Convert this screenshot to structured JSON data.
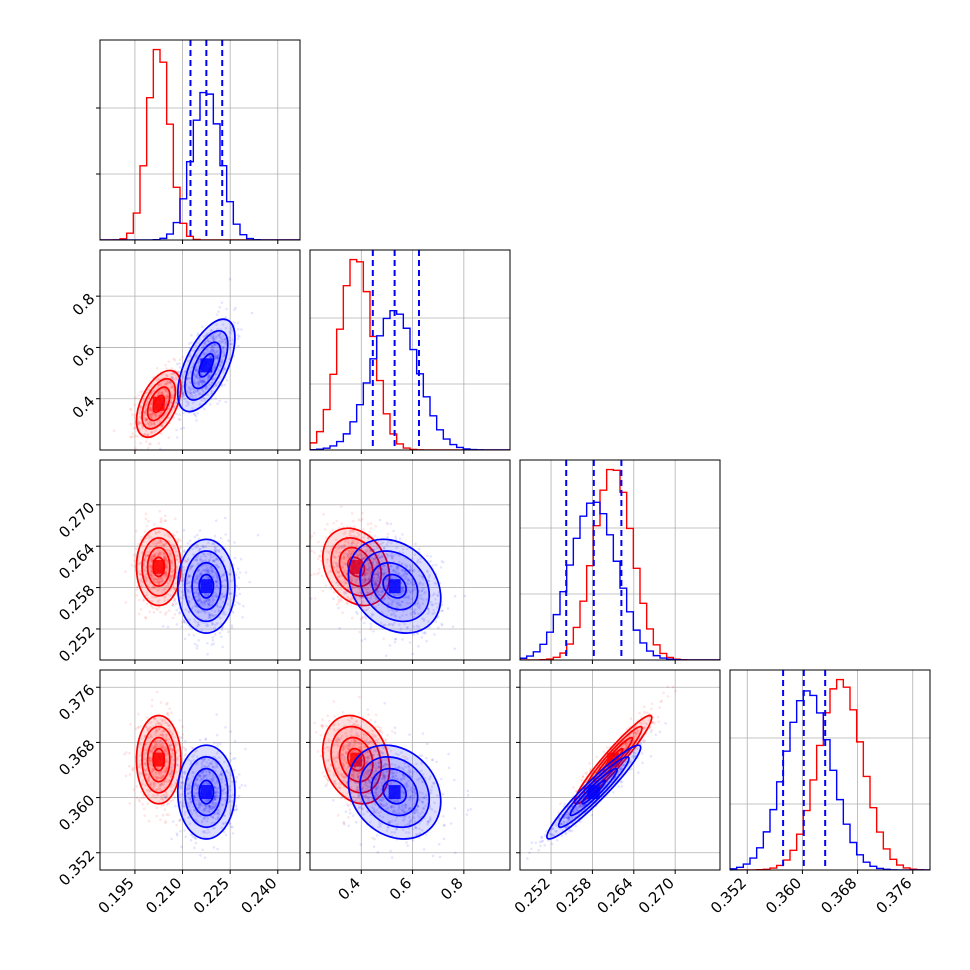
{
  "chart_data": {
    "type": "corner",
    "grid": true,
    "series": [
      {
        "color": "#ff0000",
        "mean": [
          0.2025,
          0.38,
          0.261,
          0.3655
        ],
        "std": [
          0.0035,
          0.065,
          0.0028,
          0.0032
        ]
      },
      {
        "color": "#0000ff",
        "mean": [
          0.2175,
          0.53,
          0.2582,
          0.3608
        ],
        "std": [
          0.0045,
          0.09,
          0.0034,
          0.0034
        ],
        "quantiles": [
          [
            0.2125,
            0.2175,
            0.2225
          ],
          [
            0.445,
            0.53,
            0.625
          ],
          [
            0.2542,
            0.2582,
            0.2622
          ],
          [
            0.3572,
            0.3602,
            0.3633
          ]
        ]
      }
    ],
    "correlations": {
      "0-1": [
        0.5,
        0.6
      ],
      "0-2": [
        0.0,
        0.0
      ],
      "0-3": [
        0.0,
        0.0
      ],
      "1-2": [
        -0.25,
        -0.25
      ],
      "1-3": [
        -0.2,
        -0.2
      ],
      "2-3": [
        0.95,
        0.95
      ]
    },
    "axes": [
      {
        "range": [
          0.184,
          0.247
        ],
        "ticks": [
          0.195,
          0.21,
          0.225,
          0.24
        ],
        "tick_labels": [
          "0.195",
          "0.210",
          "0.225",
          "0.240"
        ]
      },
      {
        "range": [
          0.2,
          0.98
        ],
        "ticks": [
          0.4,
          0.6,
          0.8
        ],
        "tick_labels": [
          "0.4",
          "0.6",
          "0.8"
        ]
      },
      {
        "range": [
          0.2475,
          0.2765
        ],
        "ticks": [
          0.252,
          0.258,
          0.264,
          0.27
        ],
        "tick_labels": [
          "0.252",
          "0.258",
          "0.264",
          "0.270"
        ]
      },
      {
        "range": [
          0.3495,
          0.3785
        ],
        "ticks": [
          0.352,
          0.36,
          0.368,
          0.376
        ],
        "tick_labels": [
          "0.352",
          "0.360",
          "0.368",
          "0.376"
        ]
      }
    ]
  }
}
